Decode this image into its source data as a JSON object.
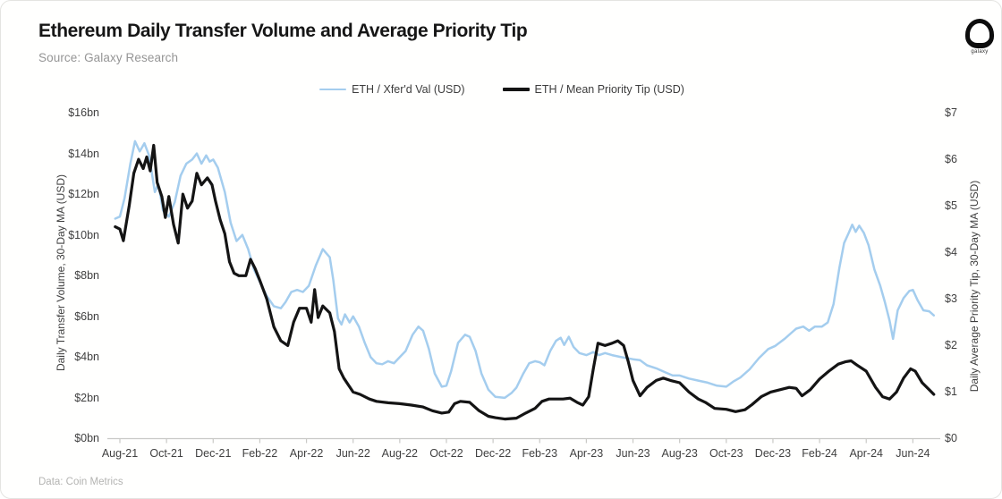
{
  "header": {
    "title": "Ethereum Daily Transfer Volume and Average Priority Tip",
    "subtitle": "Source: Galaxy Research",
    "logo_text": "galaxy"
  },
  "footer": {
    "note": "Data: Coin Metrics"
  },
  "legend": [
    {
      "label": "ETH / Xfer'd Val (USD)",
      "color": "#a4cdee",
      "thickness": 2.5
    },
    {
      "label": "ETH / Mean Priority Tip (USD)",
      "color": "#141414",
      "thickness": 3.2
    }
  ],
  "chart_data": {
    "type": "line",
    "title": "Ethereum Daily Transfer Volume and Average Priority Tip",
    "grid": false,
    "legend_position": "top-center",
    "x_axis": {
      "tick_labels": [
        "Aug-21",
        "Oct-21",
        "Dec-21",
        "Feb-22",
        "Apr-22",
        "Jun-22",
        "Aug-22",
        "Oct-22",
        "Dec-22",
        "Feb-23",
        "Apr-23",
        "Jun-23",
        "Aug-23",
        "Oct-23",
        "Dec-23",
        "Feb-24",
        "Apr-24",
        "Jun-24"
      ],
      "months_per_tick": 2
    },
    "y_left": {
      "label": "Daily Transfer Volume, 30-Day MA (USD)",
      "ticks": [
        "$16bn",
        "$14bn",
        "$12bn",
        "$10bn",
        "$8bn",
        "$6bn",
        "$4bn",
        "$2bn",
        "$0bn"
      ],
      "min": 0,
      "max": 16
    },
    "y_right": {
      "label": "Daily Average Priority Tip, 30-Day MA (USD)",
      "ticks": [
        "$7",
        "$6",
        "$5",
        "$4",
        "$3",
        "$2",
        "$1",
        "$0"
      ],
      "min": 0,
      "max": 7
    },
    "series": [
      {
        "name": "ETH / Xfer'd Val (USD)",
        "axis": "left",
        "color": "#a4cdee",
        "width": 2.5,
        "points": [
          [
            -0.2,
            10.8
          ],
          [
            0,
            10.9
          ],
          [
            0.2,
            11.8
          ],
          [
            0.45,
            13.5
          ],
          [
            0.65,
            14.6
          ],
          [
            0.85,
            14.1
          ],
          [
            1.05,
            14.5
          ],
          [
            1.25,
            13.9
          ],
          [
            1.5,
            12.1
          ],
          [
            1.65,
            12.5
          ],
          [
            1.85,
            11.2
          ],
          [
            2.1,
            10.9
          ],
          [
            2.35,
            11.6
          ],
          [
            2.6,
            12.9
          ],
          [
            2.85,
            13.5
          ],
          [
            3.1,
            13.7
          ],
          [
            3.3,
            14.0
          ],
          [
            3.5,
            13.5
          ],
          [
            3.7,
            13.9
          ],
          [
            3.85,
            13.6
          ],
          [
            4.0,
            13.7
          ],
          [
            4.2,
            13.3
          ],
          [
            4.5,
            12.1
          ],
          [
            4.75,
            10.6
          ],
          [
            5.0,
            9.7
          ],
          [
            5.25,
            10.0
          ],
          [
            5.5,
            9.3
          ],
          [
            5.75,
            8.3
          ],
          [
            6.0,
            7.7
          ],
          [
            6.3,
            7.0
          ],
          [
            6.6,
            6.5
          ],
          [
            6.9,
            6.4
          ],
          [
            7.1,
            6.7
          ],
          [
            7.35,
            7.2
          ],
          [
            7.6,
            7.3
          ],
          [
            7.85,
            7.2
          ],
          [
            8.1,
            7.5
          ],
          [
            8.4,
            8.5
          ],
          [
            8.7,
            9.3
          ],
          [
            8.85,
            9.1
          ],
          [
            9.0,
            8.9
          ],
          [
            9.15,
            7.8
          ],
          [
            9.35,
            5.9
          ],
          [
            9.5,
            5.6
          ],
          [
            9.65,
            6.1
          ],
          [
            9.85,
            5.7
          ],
          [
            10.0,
            6.0
          ],
          [
            10.25,
            5.5
          ],
          [
            10.5,
            4.7
          ],
          [
            10.75,
            4.0
          ],
          [
            11.0,
            3.7
          ],
          [
            11.25,
            3.65
          ],
          [
            11.5,
            3.8
          ],
          [
            11.75,
            3.7
          ],
          [
            12.0,
            4.0
          ],
          [
            12.25,
            4.3
          ],
          [
            12.55,
            5.1
          ],
          [
            12.8,
            5.5
          ],
          [
            13.0,
            5.3
          ],
          [
            13.25,
            4.4
          ],
          [
            13.5,
            3.2
          ],
          [
            13.8,
            2.55
          ],
          [
            14.0,
            2.6
          ],
          [
            14.2,
            3.3
          ],
          [
            14.5,
            4.7
          ],
          [
            14.8,
            5.1
          ],
          [
            15.0,
            5.0
          ],
          [
            15.25,
            4.3
          ],
          [
            15.5,
            3.2
          ],
          [
            15.8,
            2.4
          ],
          [
            16.1,
            2.05
          ],
          [
            16.5,
            2.0
          ],
          [
            16.8,
            2.25
          ],
          [
            17.0,
            2.5
          ],
          [
            17.3,
            3.2
          ],
          [
            17.55,
            3.7
          ],
          [
            17.8,
            3.8
          ],
          [
            18.0,
            3.75
          ],
          [
            18.2,
            3.6
          ],
          [
            18.45,
            4.3
          ],
          [
            18.7,
            4.8
          ],
          [
            18.9,
            4.95
          ],
          [
            19.05,
            4.6
          ],
          [
            19.25,
            5.0
          ],
          [
            19.45,
            4.5
          ],
          [
            19.7,
            4.2
          ],
          [
            20.0,
            4.1
          ],
          [
            20.3,
            4.25
          ],
          [
            20.55,
            4.1
          ],
          [
            20.8,
            4.2
          ],
          [
            21.1,
            4.1
          ],
          [
            21.5,
            4.0
          ],
          [
            22.0,
            3.9
          ],
          [
            22.3,
            3.85
          ],
          [
            22.6,
            3.6
          ],
          [
            23.0,
            3.45
          ],
          [
            23.4,
            3.25
          ],
          [
            23.7,
            3.1
          ],
          [
            24.0,
            3.1
          ],
          [
            24.4,
            2.95
          ],
          [
            24.8,
            2.85
          ],
          [
            25.2,
            2.75
          ],
          [
            25.6,
            2.6
          ],
          [
            26.0,
            2.55
          ],
          [
            26.3,
            2.8
          ],
          [
            26.6,
            3.0
          ],
          [
            27.0,
            3.4
          ],
          [
            27.4,
            3.95
          ],
          [
            27.8,
            4.4
          ],
          [
            28.1,
            4.55
          ],
          [
            28.5,
            4.9
          ],
          [
            28.8,
            5.2
          ],
          [
            29.0,
            5.4
          ],
          [
            29.3,
            5.5
          ],
          [
            29.55,
            5.3
          ],
          [
            29.8,
            5.5
          ],
          [
            30.1,
            5.5
          ],
          [
            30.35,
            5.7
          ],
          [
            30.6,
            6.6
          ],
          [
            30.85,
            8.4
          ],
          [
            31.05,
            9.6
          ],
          [
            31.25,
            10.1
          ],
          [
            31.4,
            10.5
          ],
          [
            31.55,
            10.15
          ],
          [
            31.7,
            10.45
          ],
          [
            31.9,
            10.1
          ],
          [
            32.1,
            9.5
          ],
          [
            32.35,
            8.3
          ],
          [
            32.6,
            7.5
          ],
          [
            32.8,
            6.7
          ],
          [
            33.0,
            5.8
          ],
          [
            33.15,
            4.9
          ],
          [
            33.35,
            6.3
          ],
          [
            33.6,
            6.9
          ],
          [
            33.85,
            7.25
          ],
          [
            34.0,
            7.3
          ],
          [
            34.2,
            6.8
          ],
          [
            34.45,
            6.3
          ],
          [
            34.7,
            6.25
          ],
          [
            34.9,
            6.05
          ]
        ]
      },
      {
        "name": "ETH / Mean Priority Tip (USD)",
        "axis": "right",
        "color": "#141414",
        "width": 3.2,
        "points": [
          [
            -0.2,
            4.55
          ],
          [
            0,
            4.5
          ],
          [
            0.15,
            4.25
          ],
          [
            0.4,
            5.0
          ],
          [
            0.6,
            5.7
          ],
          [
            0.8,
            6.0
          ],
          [
            1.0,
            5.8
          ],
          [
            1.15,
            6.05
          ],
          [
            1.3,
            5.75
          ],
          [
            1.45,
            6.3
          ],
          [
            1.6,
            5.5
          ],
          [
            1.8,
            5.2
          ],
          [
            1.95,
            4.75
          ],
          [
            2.1,
            5.2
          ],
          [
            2.3,
            4.6
          ],
          [
            2.5,
            4.2
          ],
          [
            2.7,
            5.25
          ],
          [
            2.9,
            4.95
          ],
          [
            3.1,
            5.1
          ],
          [
            3.3,
            5.7
          ],
          [
            3.5,
            5.45
          ],
          [
            3.75,
            5.6
          ],
          [
            3.95,
            5.45
          ],
          [
            4.1,
            5.1
          ],
          [
            4.3,
            4.7
          ],
          [
            4.5,
            4.4
          ],
          [
            4.7,
            3.8
          ],
          [
            4.9,
            3.55
          ],
          [
            5.1,
            3.5
          ],
          [
            5.4,
            3.5
          ],
          [
            5.6,
            3.85
          ],
          [
            5.8,
            3.65
          ],
          [
            6.0,
            3.4
          ],
          [
            6.3,
            3.0
          ],
          [
            6.6,
            2.4
          ],
          [
            6.9,
            2.1
          ],
          [
            7.2,
            2.0
          ],
          [
            7.45,
            2.5
          ],
          [
            7.7,
            2.8
          ],
          [
            8.0,
            2.8
          ],
          [
            8.2,
            2.5
          ],
          [
            8.35,
            3.2
          ],
          [
            8.5,
            2.6
          ],
          [
            8.7,
            2.85
          ],
          [
            9.0,
            2.7
          ],
          [
            9.2,
            2.3
          ],
          [
            9.4,
            1.5
          ],
          [
            9.6,
            1.3
          ],
          [
            9.8,
            1.15
          ],
          [
            10.0,
            1.0
          ],
          [
            10.3,
            0.95
          ],
          [
            10.7,
            0.85
          ],
          [
            11.0,
            0.8
          ],
          [
            11.5,
            0.77
          ],
          [
            12.0,
            0.75
          ],
          [
            12.5,
            0.72
          ],
          [
            13.0,
            0.68
          ],
          [
            13.4,
            0.6
          ],
          [
            13.8,
            0.55
          ],
          [
            14.1,
            0.57
          ],
          [
            14.35,
            0.75
          ],
          [
            14.6,
            0.8
          ],
          [
            15.0,
            0.78
          ],
          [
            15.4,
            0.6
          ],
          [
            15.8,
            0.48
          ],
          [
            16.1,
            0.45
          ],
          [
            16.5,
            0.42
          ],
          [
            17.0,
            0.44
          ],
          [
            17.4,
            0.55
          ],
          [
            17.8,
            0.65
          ],
          [
            18.1,
            0.8
          ],
          [
            18.4,
            0.85
          ],
          [
            19.0,
            0.85
          ],
          [
            19.3,
            0.87
          ],
          [
            19.6,
            0.78
          ],
          [
            19.85,
            0.72
          ],
          [
            20.1,
            0.9
          ],
          [
            20.3,
            1.5
          ],
          [
            20.5,
            2.05
          ],
          [
            20.8,
            2.0
          ],
          [
            21.1,
            2.05
          ],
          [
            21.35,
            2.1
          ],
          [
            21.6,
            2.0
          ],
          [
            21.8,
            1.65
          ],
          [
            22.0,
            1.25
          ],
          [
            22.3,
            0.92
          ],
          [
            22.6,
            1.1
          ],
          [
            23.0,
            1.25
          ],
          [
            23.3,
            1.3
          ],
          [
            23.6,
            1.25
          ],
          [
            24.0,
            1.2
          ],
          [
            24.4,
            1.0
          ],
          [
            24.8,
            0.85
          ],
          [
            25.1,
            0.78
          ],
          [
            25.5,
            0.65
          ],
          [
            26.0,
            0.63
          ],
          [
            26.4,
            0.58
          ],
          [
            26.8,
            0.62
          ],
          [
            27.1,
            0.73
          ],
          [
            27.5,
            0.9
          ],
          [
            27.9,
            1.0
          ],
          [
            28.3,
            1.05
          ],
          [
            28.7,
            1.1
          ],
          [
            29.0,
            1.08
          ],
          [
            29.25,
            0.92
          ],
          [
            29.6,
            1.05
          ],
          [
            30.0,
            1.28
          ],
          [
            30.4,
            1.45
          ],
          [
            30.8,
            1.6
          ],
          [
            31.1,
            1.65
          ],
          [
            31.35,
            1.67
          ],
          [
            31.6,
            1.58
          ],
          [
            32.0,
            1.45
          ],
          [
            32.4,
            1.1
          ],
          [
            32.7,
            0.9
          ],
          [
            33.0,
            0.85
          ],
          [
            33.3,
            1.0
          ],
          [
            33.6,
            1.3
          ],
          [
            33.9,
            1.5
          ],
          [
            34.1,
            1.45
          ],
          [
            34.4,
            1.2
          ],
          [
            34.7,
            1.05
          ],
          [
            34.9,
            0.95
          ]
        ]
      }
    ]
  }
}
